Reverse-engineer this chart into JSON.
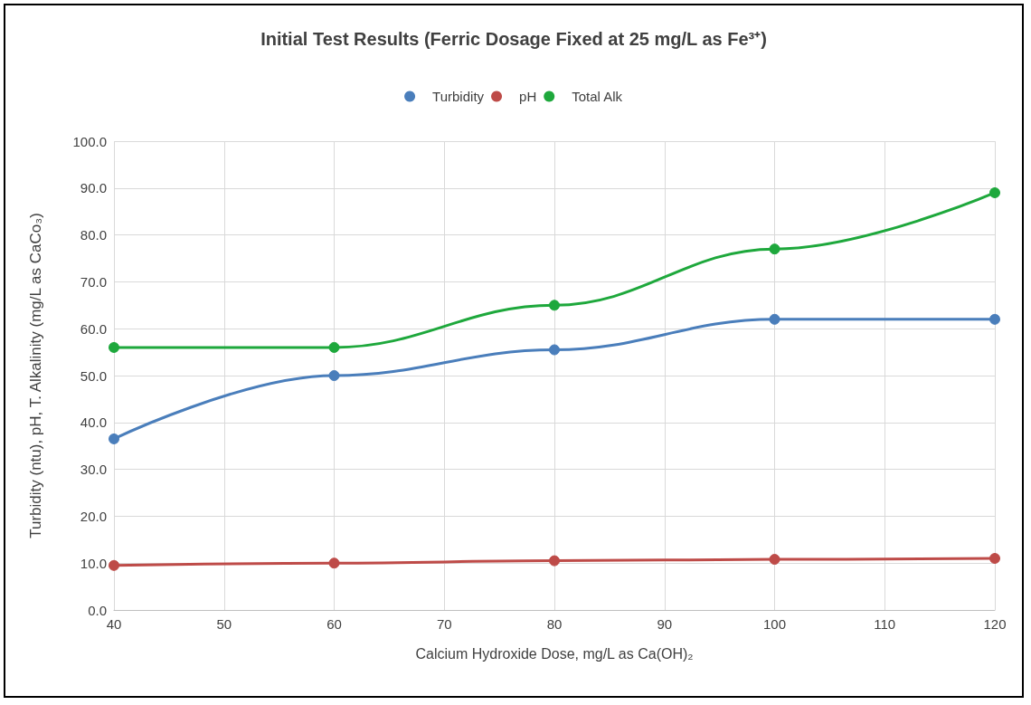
{
  "chart_data": {
    "type": "line",
    "title": "Initial Test Results (Ferric Dosage Fixed at 25 mg/L as Fe³⁺)",
    "xlabel": "Calcium Hydroxide Dose, mg/L as Ca(OH)₂",
    "ylabel": "Turbidity (ntu), pH, T. Alkalinity (mg/L as CaCo₃)",
    "x": [
      40,
      60,
      80,
      100,
      120
    ],
    "series": [
      {
        "name": "Turbidity",
        "color": "#4a7ebb",
        "values": [
          36.5,
          50,
          55.5,
          62,
          62
        ]
      },
      {
        "name": "pH",
        "color": "#be4b48",
        "values": [
          9.5,
          10,
          10.5,
          10.8,
          11
        ]
      },
      {
        "name": "Total Alk",
        "color": "#1ea83c",
        "values": [
          56,
          56,
          65,
          77,
          89
        ]
      }
    ],
    "xlim": [
      40,
      120
    ],
    "xticks": [
      40,
      50,
      60,
      70,
      80,
      90,
      100,
      110,
      120
    ],
    "ylim": [
      0,
      100
    ],
    "yticks": [
      {
        "value": 0,
        "label": "0.0"
      },
      {
        "value": 10,
        "label": "10.0"
      },
      {
        "value": 20,
        "label": "20.0"
      },
      {
        "value": 30,
        "label": "30.0"
      },
      {
        "value": 40,
        "label": "40.0"
      },
      {
        "value": 50,
        "label": "50.0"
      },
      {
        "value": 60,
        "label": "60.0"
      },
      {
        "value": 70,
        "label": "70.0"
      },
      {
        "value": 80,
        "label": "80.0"
      },
      {
        "value": 90,
        "label": "90.0"
      },
      {
        "value": 100,
        "label": "100.0"
      }
    ],
    "grid": true,
    "legend": "top",
    "marker": "circle",
    "line_style": "solid"
  }
}
